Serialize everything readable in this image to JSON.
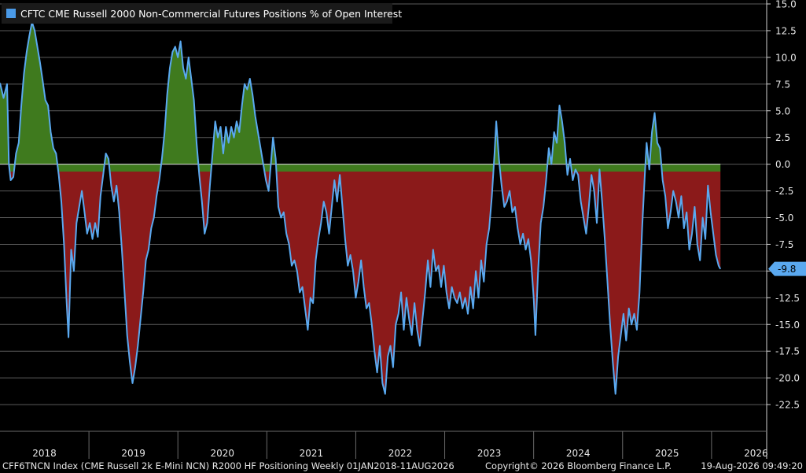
{
  "chart_data": {
    "type": "area",
    "legend": "CFTC CME Russell 2000 Non-Commercial Futures Positions % of Open Interest",
    "legend_color": "#4a9ae8",
    "last_value_label": "-9.8",
    "ylim": [
      -25,
      15
    ],
    "y_ticks": [
      "15.0",
      "12.5",
      "10.0",
      "7.5",
      "5.0",
      "2.5",
      "0.0",
      "-2.5",
      "-5.0",
      "-7.5",
      "-10.0",
      "-12.5",
      "-15.0",
      "-17.5",
      "-20.0",
      "-22.5"
    ],
    "y_tick_values": [
      15,
      12.5,
      10,
      7.5,
      5,
      2.5,
      0,
      -2.5,
      -5,
      -7.5,
      -10,
      -12.5,
      -15,
      -17.5,
      -20,
      -22.5
    ],
    "x_labels": [
      "2018",
      "2019",
      "2020",
      "2021",
      "2022",
      "2023",
      "2024",
      "2025",
      "2026"
    ],
    "x_range": [
      2018.0,
      2026.62
    ],
    "grid": true,
    "colors": {
      "line": "#5aa9f0",
      "positive": "#3f7a1e",
      "negative": "#8b1a1a",
      "grid": "#5a5a5a",
      "axis": "#cfcfcf"
    },
    "series": [
      {
        "values": [
          [
            2018.0,
            7.6
          ],
          [
            2018.04,
            6.2
          ],
          [
            2018.08,
            7.5
          ],
          [
            2018.1,
            0.0
          ],
          [
            2018.12,
            -1.5
          ],
          [
            2018.15,
            -1.2
          ],
          [
            2018.18,
            1.0
          ],
          [
            2018.21,
            2.0
          ],
          [
            2018.24,
            5.5
          ],
          [
            2018.27,
            8.5
          ],
          [
            2018.3,
            10.5
          ],
          [
            2018.33,
            12.0
          ],
          [
            2018.36,
            13.3
          ],
          [
            2018.39,
            12.5
          ],
          [
            2018.42,
            11.0
          ],
          [
            2018.45,
            9.5
          ],
          [
            2018.48,
            7.8
          ],
          [
            2018.51,
            6.0
          ],
          [
            2018.54,
            5.5
          ],
          [
            2018.57,
            3.0
          ],
          [
            2018.6,
            1.5
          ],
          [
            2018.63,
            1.0
          ],
          [
            2018.66,
            -1.0
          ],
          [
            2018.69,
            -3.5
          ],
          [
            2018.72,
            -7.5
          ],
          [
            2018.75,
            -13.0
          ],
          [
            2018.77,
            -16.2
          ],
          [
            2018.8,
            -8.0
          ],
          [
            2018.83,
            -10.0
          ],
          [
            2018.86,
            -5.5
          ],
          [
            2018.89,
            -4.0
          ],
          [
            2018.92,
            -2.5
          ],
          [
            2018.95,
            -4.5
          ],
          [
            2018.98,
            -6.5
          ],
          [
            2019.01,
            -5.5
          ],
          [
            2019.04,
            -7.0
          ],
          [
            2019.07,
            -5.5
          ],
          [
            2019.1,
            -6.8
          ],
          [
            2019.13,
            -3.0
          ],
          [
            2019.16,
            -1.0
          ],
          [
            2019.19,
            1.0
          ],
          [
            2019.22,
            0.5
          ],
          [
            2019.25,
            -2.0
          ],
          [
            2019.28,
            -3.5
          ],
          [
            2019.31,
            -2.0
          ],
          [
            2019.34,
            -4.5
          ],
          [
            2019.37,
            -8.0
          ],
          [
            2019.4,
            -12.0
          ],
          [
            2019.43,
            -16.0
          ],
          [
            2019.46,
            -18.5
          ],
          [
            2019.49,
            -20.5
          ],
          [
            2019.52,
            -19.0
          ],
          [
            2019.55,
            -17.0
          ],
          [
            2019.58,
            -14.5
          ],
          [
            2019.61,
            -12.0
          ],
          [
            2019.64,
            -9.0
          ],
          [
            2019.67,
            -8.0
          ],
          [
            2019.7,
            -6.0
          ],
          [
            2019.73,
            -5.0
          ],
          [
            2019.76,
            -3.0
          ],
          [
            2019.79,
            -1.5
          ],
          [
            2019.82,
            0.5
          ],
          [
            2019.85,
            3.0
          ],
          [
            2019.88,
            6.5
          ],
          [
            2019.91,
            9.0
          ],
          [
            2019.94,
            10.5
          ],
          [
            2019.97,
            11.0
          ],
          [
            2020.0,
            10.0
          ],
          [
            2020.03,
            11.5
          ],
          [
            2020.06,
            9.0
          ],
          [
            2020.09,
            8.0
          ],
          [
            2020.12,
            10.0
          ],
          [
            2020.15,
            8.0
          ],
          [
            2020.18,
            6.0
          ],
          [
            2020.21,
            2.0
          ],
          [
            2020.24,
            -1.0
          ],
          [
            2020.27,
            -3.5
          ],
          [
            2020.3,
            -6.5
          ],
          [
            2020.33,
            -5.5
          ],
          [
            2020.36,
            -2.0
          ],
          [
            2020.39,
            1.0
          ],
          [
            2020.42,
            4.0
          ],
          [
            2020.45,
            2.5
          ],
          [
            2020.48,
            3.5
          ],
          [
            2020.51,
            1.0
          ],
          [
            2020.54,
            3.5
          ],
          [
            2020.57,
            2.0
          ],
          [
            2020.6,
            3.5
          ],
          [
            2020.63,
            2.5
          ],
          [
            2020.66,
            4.0
          ],
          [
            2020.69,
            3.0
          ],
          [
            2020.72,
            5.5
          ],
          [
            2020.75,
            7.5
          ],
          [
            2020.78,
            7.0
          ],
          [
            2020.81,
            8.0
          ],
          [
            2020.84,
            6.5
          ],
          [
            2020.87,
            4.5
          ],
          [
            2020.9,
            3.0
          ],
          [
            2020.93,
            1.5
          ],
          [
            2020.96,
            0.0
          ],
          [
            2020.99,
            -1.5
          ],
          [
            2021.02,
            -2.5
          ],
          [
            2021.05,
            0.5
          ],
          [
            2021.07,
            2.5
          ],
          [
            2021.1,
            0.5
          ],
          [
            2021.13,
            -4.0
          ],
          [
            2021.16,
            -5.0
          ],
          [
            2021.19,
            -4.5
          ],
          [
            2021.22,
            -6.5
          ],
          [
            2021.25,
            -7.5
          ],
          [
            2021.28,
            -9.5
          ],
          [
            2021.31,
            -9.0
          ],
          [
            2021.34,
            -10.0
          ],
          [
            2021.37,
            -12.0
          ],
          [
            2021.4,
            -11.5
          ],
          [
            2021.43,
            -13.5
          ],
          [
            2021.46,
            -15.5
          ],
          [
            2021.49,
            -12.5
          ],
          [
            2021.52,
            -13.0
          ],
          [
            2021.55,
            -9.0
          ],
          [
            2021.58,
            -7.0
          ],
          [
            2021.61,
            -5.5
          ],
          [
            2021.64,
            -3.5
          ],
          [
            2021.67,
            -4.5
          ],
          [
            2021.7,
            -6.5
          ],
          [
            2021.73,
            -4.0
          ],
          [
            2021.76,
            -1.5
          ],
          [
            2021.79,
            -3.5
          ],
          [
            2021.82,
            -1.0
          ],
          [
            2021.85,
            -4.0
          ],
          [
            2021.88,
            -7.0
          ],
          [
            2021.91,
            -9.5
          ],
          [
            2021.94,
            -8.5
          ],
          [
            2021.97,
            -10.0
          ],
          [
            2022.0,
            -12.5
          ],
          [
            2022.03,
            -11.0
          ],
          [
            2022.06,
            -9.0
          ],
          [
            2022.09,
            -11.5
          ],
          [
            2022.12,
            -13.5
          ],
          [
            2022.15,
            -13.0
          ],
          [
            2022.18,
            -15.0
          ],
          [
            2022.21,
            -17.5
          ],
          [
            2022.24,
            -19.5
          ],
          [
            2022.27,
            -17.0
          ],
          [
            2022.3,
            -20.5
          ],
          [
            2022.33,
            -21.5
          ],
          [
            2022.36,
            -18.0
          ],
          [
            2022.39,
            -17.0
          ],
          [
            2022.42,
            -19.0
          ],
          [
            2022.45,
            -15.0
          ],
          [
            2022.48,
            -14.0
          ],
          [
            2022.51,
            -12.0
          ],
          [
            2022.54,
            -15.5
          ],
          [
            2022.57,
            -12.5
          ],
          [
            2022.6,
            -14.5
          ],
          [
            2022.63,
            -16.0
          ],
          [
            2022.66,
            -13.0
          ],
          [
            2022.69,
            -15.5
          ],
          [
            2022.72,
            -17.0
          ],
          [
            2022.75,
            -14.5
          ],
          [
            2022.78,
            -12.0
          ],
          [
            2022.81,
            -9.0
          ],
          [
            2022.84,
            -11.5
          ],
          [
            2022.87,
            -8.0
          ],
          [
            2022.9,
            -10.0
          ],
          [
            2022.93,
            -9.5
          ],
          [
            2022.96,
            -11.5
          ],
          [
            2022.99,
            -9.5
          ],
          [
            2023.02,
            -12.0
          ],
          [
            2023.05,
            -13.5
          ],
          [
            2023.08,
            -11.5
          ],
          [
            2023.11,
            -12.5
          ],
          [
            2023.14,
            -13.0
          ],
          [
            2023.17,
            -12.0
          ],
          [
            2023.2,
            -13.5
          ],
          [
            2023.23,
            -12.5
          ],
          [
            2023.26,
            -14.0
          ],
          [
            2023.29,
            -11.5
          ],
          [
            2023.32,
            -13.5
          ],
          [
            2023.35,
            -10.0
          ],
          [
            2023.38,
            -12.5
          ],
          [
            2023.41,
            -9.0
          ],
          [
            2023.44,
            -11.0
          ],
          [
            2023.47,
            -7.5
          ],
          [
            2023.5,
            -6.0
          ],
          [
            2023.53,
            -3.0
          ],
          [
            2023.56,
            1.0
          ],
          [
            2023.58,
            4.0
          ],
          [
            2023.61,
            0.5
          ],
          [
            2023.64,
            -2.0
          ],
          [
            2023.67,
            -4.0
          ],
          [
            2023.7,
            -3.5
          ],
          [
            2023.73,
            -2.5
          ],
          [
            2023.76,
            -4.5
          ],
          [
            2023.79,
            -4.0
          ],
          [
            2023.82,
            -6.0
          ],
          [
            2023.85,
            -7.5
          ],
          [
            2023.88,
            -6.5
          ],
          [
            2023.91,
            -8.0
          ],
          [
            2023.94,
            -7.0
          ],
          [
            2023.97,
            -9.0
          ],
          [
            2024.0,
            -12.5
          ],
          [
            2024.02,
            -16.0
          ],
          [
            2024.05,
            -10.0
          ],
          [
            2024.08,
            -5.5
          ],
          [
            2024.11,
            -4.0
          ],
          [
            2024.14,
            -1.5
          ],
          [
            2024.17,
            1.5
          ],
          [
            2024.2,
            0.0
          ],
          [
            2024.23,
            3.0
          ],
          [
            2024.26,
            2.0
          ],
          [
            2024.29,
            5.5
          ],
          [
            2024.32,
            4.0
          ],
          [
            2024.35,
            2.0
          ],
          [
            2024.38,
            -1.0
          ],
          [
            2024.41,
            0.5
          ],
          [
            2024.44,
            -1.5
          ],
          [
            2024.47,
            -0.5
          ],
          [
            2024.5,
            -1.0
          ],
          [
            2024.53,
            -3.5
          ],
          [
            2024.56,
            -5.0
          ],
          [
            2024.59,
            -6.5
          ],
          [
            2024.62,
            -4.0
          ],
          [
            2024.65,
            -1.0
          ],
          [
            2024.68,
            -2.5
          ],
          [
            2024.71,
            -5.5
          ],
          [
            2024.74,
            -0.5
          ],
          [
            2024.77,
            -3.5
          ],
          [
            2024.8,
            -7.0
          ],
          [
            2024.83,
            -11.0
          ],
          [
            2024.86,
            -15.0
          ],
          [
            2024.89,
            -18.5
          ],
          [
            2024.92,
            -21.5
          ],
          [
            2024.95,
            -18.0
          ],
          [
            2024.98,
            -16.0
          ],
          [
            2025.01,
            -14.0
          ],
          [
            2025.04,
            -16.5
          ],
          [
            2025.07,
            -13.5
          ],
          [
            2025.1,
            -15.0
          ],
          [
            2025.13,
            -14.0
          ],
          [
            2025.16,
            -15.5
          ],
          [
            2025.19,
            -12.0
          ],
          [
            2025.22,
            -6.0
          ],
          [
            2025.25,
            -1.0
          ],
          [
            2025.27,
            2.0
          ],
          [
            2025.3,
            -0.5
          ],
          [
            2025.33,
            3.0
          ],
          [
            2025.36,
            4.8
          ],
          [
            2025.39,
            2.0
          ],
          [
            2025.42,
            1.5
          ],
          [
            2025.45,
            -1.5
          ],
          [
            2025.48,
            -3.0
          ],
          [
            2025.51,
            -6.0
          ],
          [
            2025.54,
            -4.5
          ],
          [
            2025.57,
            -2.5
          ],
          [
            2025.6,
            -3.5
          ],
          [
            2025.63,
            -5.0
          ],
          [
            2025.66,
            -3.0
          ],
          [
            2025.69,
            -6.0
          ],
          [
            2025.72,
            -4.5
          ],
          [
            2025.75,
            -8.0
          ],
          [
            2025.78,
            -6.5
          ],
          [
            2025.81,
            -4.0
          ],
          [
            2025.84,
            -7.5
          ],
          [
            2025.87,
            -9.0
          ],
          [
            2025.9,
            -5.0
          ],
          [
            2025.93,
            -7.0
          ],
          [
            2025.96,
            -2.0
          ],
          [
            2025.99,
            -4.5
          ],
          [
            2026.02,
            -6.5
          ],
          [
            2026.05,
            -8.5
          ],
          [
            2026.08,
            -9.5
          ],
          [
            2026.1,
            -9.8
          ]
        ]
      }
    ]
  },
  "footer": {
    "source": "CFF6TNCN Index (CME Russell 2k E-Mini NCN) R2000 HF Positioning Weekly 01JAN2018-11AUG2026",
    "copyright": "Copyright© 2026 Bloomberg Finance L.P.",
    "timestamp": "19-Aug-2026 09:49:20"
  }
}
